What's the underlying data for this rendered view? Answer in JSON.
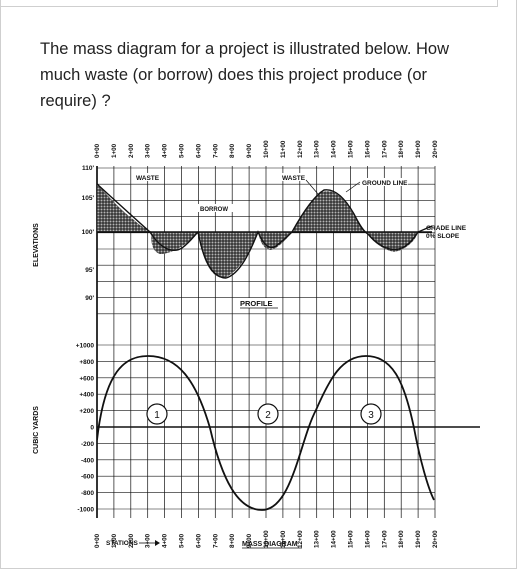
{
  "question": {
    "text": "The mass diagram for a project is illustrated below. How much waste (or borrow) does this project produce (or require) ?"
  },
  "figure": {
    "stations": [
      "0+00",
      "1+00",
      "2+00",
      "3+00",
      "4+00",
      "5+00",
      "6+00",
      "7+00",
      "8+00",
      "9+00",
      "10+00",
      "11+00",
      "12+00",
      "13+00",
      "14+00",
      "15+00",
      "16+00",
      "17+00",
      "18+00",
      "19+00",
      "20+00"
    ],
    "elevation_ticks": [
      "110'",
      "105'",
      "100'",
      "95'",
      "90'"
    ],
    "cy_ticks": [
      "+1000",
      "+800",
      "+600",
      "+400",
      "+200",
      "0",
      "-200",
      "-400",
      "-600",
      "-800",
      "-1000"
    ],
    "labels": {
      "elevations": "ELEVATIONS",
      "cubic_yards": "CUBIC YARDS",
      "waste_1": "WASTE",
      "waste_2": "WASTE",
      "borrow": "BORROW",
      "ground_line": "GROUND LINE",
      "grade_line_1": "GRADE LINE",
      "grade_line_2": "0% SLOPE",
      "profile": "PROFILE",
      "stations_label": "STATIONS",
      "mass_diagram": "MASS DIAGRAM"
    },
    "circles": [
      "1",
      "2",
      "3"
    ]
  }
}
